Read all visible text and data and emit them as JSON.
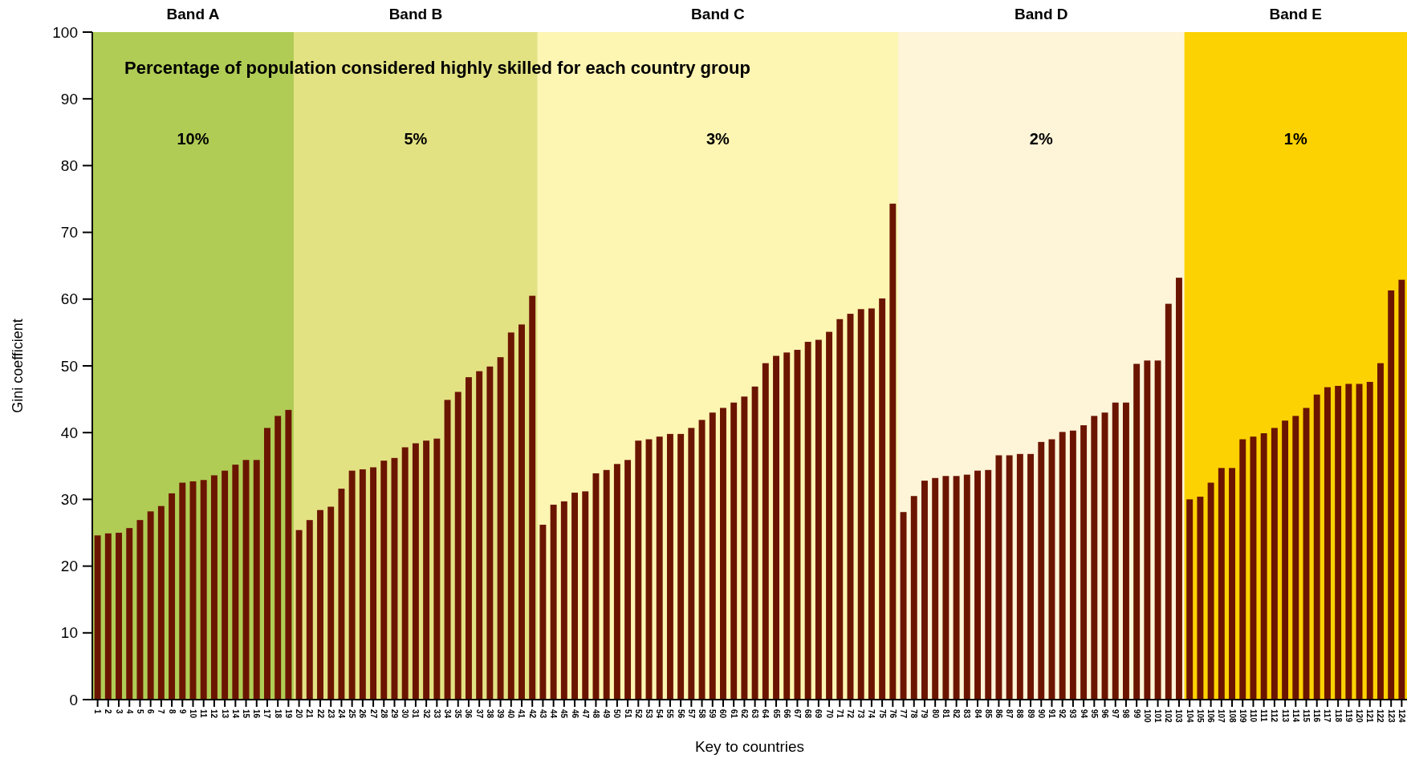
{
  "chart_data": {
    "type": "bar",
    "ylabel": "Gini coefficient",
    "xlabel": "Key to countries",
    "categories": [
      "1",
      "2",
      "3",
      "4",
      "5",
      "6",
      "7",
      "8",
      "9",
      "10",
      "11",
      "12",
      "13",
      "14",
      "15",
      "16",
      "17",
      "18",
      "19",
      "20",
      "21",
      "22",
      "23",
      "24",
      "25",
      "26",
      "27",
      "28",
      "29",
      "30",
      "31",
      "32",
      "33",
      "34",
      "35",
      "36",
      "37",
      "38",
      "39",
      "40",
      "41",
      "42",
      "43",
      "44",
      "45",
      "46",
      "47",
      "48",
      "49",
      "50",
      "51",
      "52",
      "53",
      "54",
      "55",
      "56",
      "57",
      "58",
      "59",
      "60",
      "61",
      "62",
      "63",
      "64",
      "65",
      "66",
      "67",
      "68",
      "69",
      "70",
      "71",
      "72",
      "73",
      "74",
      "75",
      "76",
      "77",
      "78",
      "79",
      "80",
      "81",
      "82",
      "83",
      "84",
      "85",
      "86",
      "87",
      "88",
      "89",
      "90",
      "91",
      "92",
      "93",
      "94",
      "95",
      "96",
      "97",
      "98",
      "99",
      "100",
      "101",
      "102",
      "103",
      "104",
      "105",
      "106",
      "107",
      "108",
      "109",
      "110",
      "111",
      "112",
      "113",
      "114",
      "115",
      "116",
      "117",
      "118",
      "119",
      "120",
      "121",
      "122",
      "123",
      "124"
    ],
    "values": [
      24.6,
      24.9,
      25.0,
      25.7,
      26.9,
      28.2,
      29.0,
      30.9,
      32.5,
      32.7,
      32.9,
      33.6,
      34.3,
      35.2,
      35.9,
      35.9,
      40.7,
      42.5,
      43.4,
      25.4,
      26.9,
      28.4,
      28.9,
      31.6,
      34.3,
      34.5,
      34.8,
      35.8,
      36.2,
      37.8,
      38.4,
      38.8,
      39.1,
      44.9,
      46.1,
      48.3,
      49.2,
      49.9,
      51.3,
      55.0,
      56.2,
      60.5,
      26.2,
      29.2,
      29.7,
      31.0,
      31.2,
      33.9,
      34.4,
      35.3,
      35.9,
      38.8,
      39.0,
      39.4,
      39.8,
      39.8,
      40.7,
      41.9,
      43.0,
      43.7,
      44.5,
      45.4,
      46.9,
      50.4,
      51.5,
      52.0,
      52.4,
      53.6,
      53.9,
      55.1,
      57.0,
      57.8,
      58.5,
      58.6,
      60.1,
      74.3,
      28.1,
      30.5,
      32.8,
      33.2,
      33.5,
      33.5,
      33.7,
      34.3,
      34.4,
      36.6,
      36.6,
      36.8,
      36.8,
      38.6,
      39.0,
      40.1,
      40.3,
      41.1,
      42.5,
      43.0,
      44.5,
      44.5,
      50.3,
      50.8,
      50.8,
      59.3,
      63.2,
      30.0,
      30.4,
      32.5,
      34.7,
      34.7,
      39.0,
      39.4,
      39.9,
      40.7,
      41.8,
      42.5,
      43.7,
      45.7,
      46.8,
      47.0,
      47.3,
      47.3,
      47.6,
      50.4,
      61.3,
      62.9
    ],
    "color": "#6b1500",
    "ylim": [
      0,
      100
    ],
    "yticks": [
      0,
      10,
      20,
      30,
      40,
      50,
      60,
      70,
      80,
      90,
      100
    ],
    "bands": [
      {
        "axis": "x",
        "from": "1",
        "to": "19",
        "label": "Band A",
        "color": "#b0cc55"
      },
      {
        "axis": "x",
        "from": "20",
        "to": "42",
        "label": "Band B",
        "color": "#e3e283"
      },
      {
        "axis": "x",
        "from": "43",
        "to": "76",
        "label": "Band C",
        "color": "#fdf5b2"
      },
      {
        "axis": "x",
        "from": "77",
        "to": "103",
        "label": "Band D",
        "color": "#fef4d8"
      },
      {
        "axis": "x",
        "from": "104",
        "to": "124",
        "label": "Band E",
        "color": "#fdd203"
      }
    ],
    "annotations": [
      "Percentage of population considered highly skilled for each country group",
      "10%",
      "5%",
      "3%",
      "2%",
      "1%"
    ]
  }
}
